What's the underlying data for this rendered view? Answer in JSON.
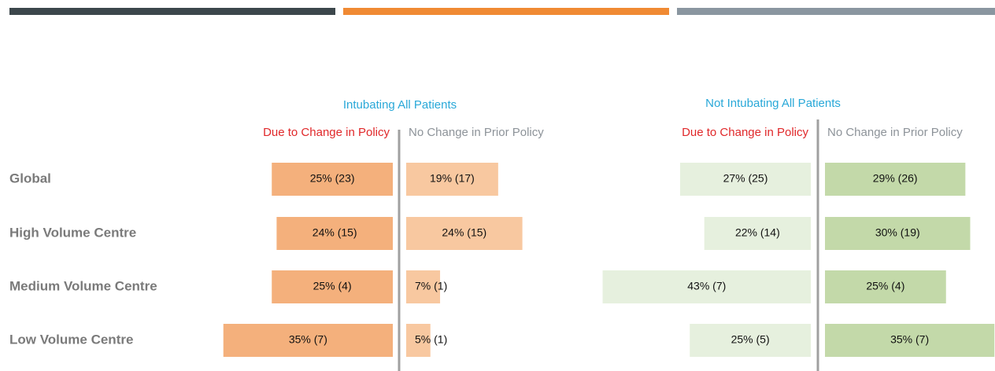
{
  "chart_data": {
    "type": "bar",
    "categories": [
      "Global",
      "High Volume Centre",
      "Medium Volume Centre",
      "Low Volume Centre"
    ],
    "groups": [
      {
        "title": "Intubating All Patients",
        "series": [
          {
            "name": "Due to Change in Policy",
            "color": "#f4b07c",
            "values": [
              25,
              24,
              25,
              35
            ],
            "value_labels": [
              "25% (23)",
              "24% (15)",
              "25% (4)",
              "35% (7)"
            ]
          },
          {
            "name": "No Change in Prior Policy",
            "color": "#f8c8a0",
            "values": [
              19,
              24,
              7,
              5
            ],
            "value_labels": [
              "19% (17)",
              "24% (15)",
              "7% (1)",
              "5% (1)"
            ]
          }
        ]
      },
      {
        "title": "Not Intubating All Patients",
        "series": [
          {
            "name": "Due to Change in Policy",
            "color": "#e6f0de",
            "values": [
              27,
              22,
              43,
              25
            ],
            "value_labels": [
              "27% (25)",
              "22% (14)",
              "43% (7)",
              "25% (5)"
            ]
          },
          {
            "name": "No Change in Prior Policy",
            "color": "#c3d9a9",
            "values": [
              29,
              30,
              25,
              35
            ],
            "value_labels": [
              "29% (26)",
              "30% (19)",
              "25% (4)",
              "35% (7)"
            ]
          }
        ]
      }
    ]
  }
}
